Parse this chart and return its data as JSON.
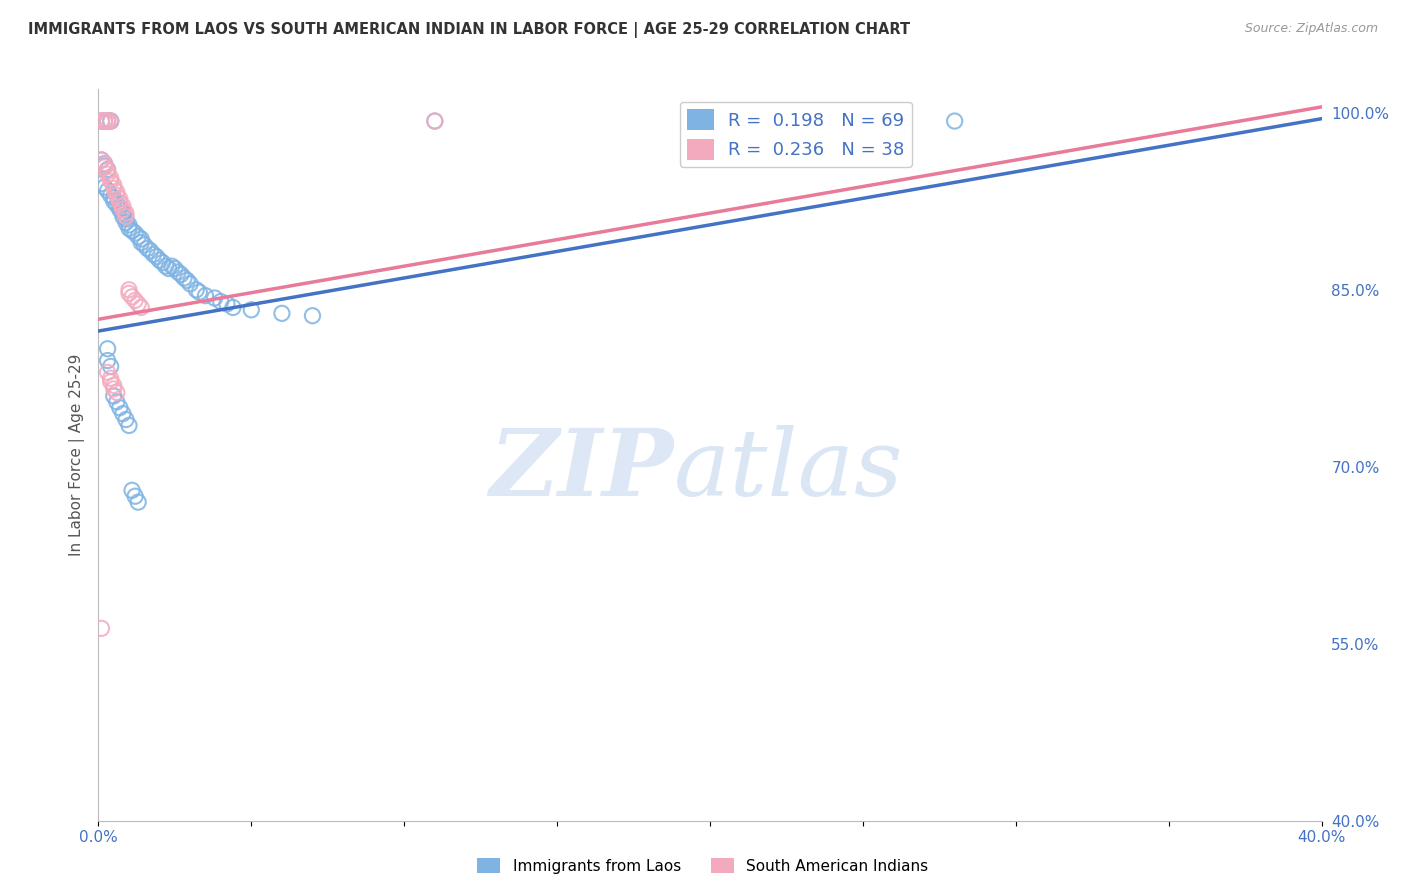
{
  "title": "IMMIGRANTS FROM LAOS VS SOUTH AMERICAN INDIAN IN LABOR FORCE | AGE 25-29 CORRELATION CHART",
  "source": "Source: ZipAtlas.com",
  "ylabel": "In Labor Force | Age 25-29",
  "xlim": [
    0.0,
    0.4
  ],
  "ylim": [
    0.4,
    1.02
  ],
  "xticks": [
    0.0,
    0.05,
    0.1,
    0.15,
    0.2,
    0.25,
    0.3,
    0.35,
    0.4
  ],
  "xticklabels": [
    "0.0%",
    "",
    "",
    "",
    "",
    "",
    "",
    "",
    "40.0%"
  ],
  "yticks_right": [
    1.0,
    0.85,
    0.7,
    0.55,
    0.4
  ],
  "ytick_labels_right": [
    "100.0%",
    "85.0%",
    "70.0%",
    "55.0%",
    "40.0%"
  ],
  "blue_R": 0.198,
  "blue_N": 69,
  "pink_R": 0.236,
  "pink_N": 38,
  "blue_color": "#7EB3E3",
  "pink_color": "#F4AABE",
  "blue_line_color": "#4472C4",
  "pink_line_color": "#E87A9A",
  "legend_label_blue": "Immigrants from Laos",
  "legend_label_pink": "South American Indians",
  "title_color": "#333333",
  "axis_color": "#4472C4",
  "blue_scatter": [
    [
      0.001,
      0.993
    ],
    [
      0.002,
      0.993
    ],
    [
      0.003,
      0.993
    ],
    [
      0.004,
      0.993
    ],
    [
      0.004,
      0.993
    ],
    [
      0.001,
      0.96
    ],
    [
      0.002,
      0.957
    ],
    [
      0.002,
      0.955
    ],
    [
      0.003,
      0.952
    ],
    [
      0.001,
      0.94
    ],
    [
      0.002,
      0.937
    ],
    [
      0.003,
      0.934
    ],
    [
      0.004,
      0.93
    ],
    [
      0.005,
      0.928
    ],
    [
      0.005,
      0.925
    ],
    [
      0.006,
      0.922
    ],
    [
      0.007,
      0.92
    ],
    [
      0.007,
      0.918
    ],
    [
      0.008,
      0.915
    ],
    [
      0.008,
      0.912
    ],
    [
      0.009,
      0.91
    ],
    [
      0.009,
      0.907
    ],
    [
      0.01,
      0.905
    ],
    [
      0.01,
      0.902
    ],
    [
      0.011,
      0.9
    ],
    [
      0.012,
      0.898
    ],
    [
      0.013,
      0.895
    ],
    [
      0.014,
      0.893
    ],
    [
      0.014,
      0.89
    ],
    [
      0.015,
      0.888
    ],
    [
      0.016,
      0.885
    ],
    [
      0.017,
      0.883
    ],
    [
      0.018,
      0.88
    ],
    [
      0.019,
      0.878
    ],
    [
      0.02,
      0.875
    ],
    [
      0.021,
      0.873
    ],
    [
      0.022,
      0.87
    ],
    [
      0.023,
      0.868
    ],
    [
      0.024,
      0.87
    ],
    [
      0.025,
      0.868
    ],
    [
      0.026,
      0.865
    ],
    [
      0.027,
      0.863
    ],
    [
      0.028,
      0.86
    ],
    [
      0.029,
      0.858
    ],
    [
      0.03,
      0.855
    ],
    [
      0.032,
      0.85
    ],
    [
      0.033,
      0.848
    ],
    [
      0.035,
      0.845
    ],
    [
      0.038,
      0.843
    ],
    [
      0.04,
      0.84
    ],
    [
      0.042,
      0.838
    ],
    [
      0.044,
      0.835
    ],
    [
      0.05,
      0.833
    ],
    [
      0.06,
      0.83
    ],
    [
      0.07,
      0.828
    ],
    [
      0.003,
      0.8
    ],
    [
      0.003,
      0.79
    ],
    [
      0.004,
      0.785
    ],
    [
      0.005,
      0.76
    ],
    [
      0.006,
      0.755
    ],
    [
      0.007,
      0.75
    ],
    [
      0.008,
      0.745
    ],
    [
      0.009,
      0.74
    ],
    [
      0.01,
      0.735
    ],
    [
      0.011,
      0.68
    ],
    [
      0.012,
      0.675
    ],
    [
      0.013,
      0.67
    ],
    [
      0.11,
      0.993
    ],
    [
      0.28,
      0.993
    ]
  ],
  "pink_scatter": [
    [
      0.001,
      0.993
    ],
    [
      0.001,
      0.993
    ],
    [
      0.002,
      0.993
    ],
    [
      0.002,
      0.993
    ],
    [
      0.003,
      0.993
    ],
    [
      0.003,
      0.993
    ],
    [
      0.004,
      0.993
    ],
    [
      0.001,
      0.96
    ],
    [
      0.002,
      0.957
    ],
    [
      0.002,
      0.954
    ],
    [
      0.003,
      0.951
    ],
    [
      0.003,
      0.948
    ],
    [
      0.004,
      0.945
    ],
    [
      0.004,
      0.942
    ],
    [
      0.005,
      0.939
    ],
    [
      0.005,
      0.936
    ],
    [
      0.006,
      0.933
    ],
    [
      0.006,
      0.93
    ],
    [
      0.007,
      0.927
    ],
    [
      0.007,
      0.924
    ],
    [
      0.008,
      0.921
    ],
    [
      0.008,
      0.918
    ],
    [
      0.009,
      0.915
    ],
    [
      0.009,
      0.912
    ],
    [
      0.01,
      0.85
    ],
    [
      0.01,
      0.847
    ],
    [
      0.011,
      0.844
    ],
    [
      0.012,
      0.841
    ],
    [
      0.013,
      0.838
    ],
    [
      0.014,
      0.835
    ],
    [
      0.003,
      0.78
    ],
    [
      0.004,
      0.775
    ],
    [
      0.004,
      0.772
    ],
    [
      0.005,
      0.769
    ],
    [
      0.005,
      0.766
    ],
    [
      0.006,
      0.763
    ],
    [
      0.001,
      0.563
    ],
    [
      0.11,
      0.993
    ]
  ],
  "blue_line": [
    [
      0.0,
      0.815
    ],
    [
      0.4,
      0.995
    ]
  ],
  "pink_line": [
    [
      0.0,
      0.825
    ],
    [
      0.4,
      1.005
    ]
  ],
  "watermark_zip": "ZIP",
  "watermark_atlas": "atlas",
  "background_color": "#FFFFFF",
  "grid_color": "#CCCCCC"
}
